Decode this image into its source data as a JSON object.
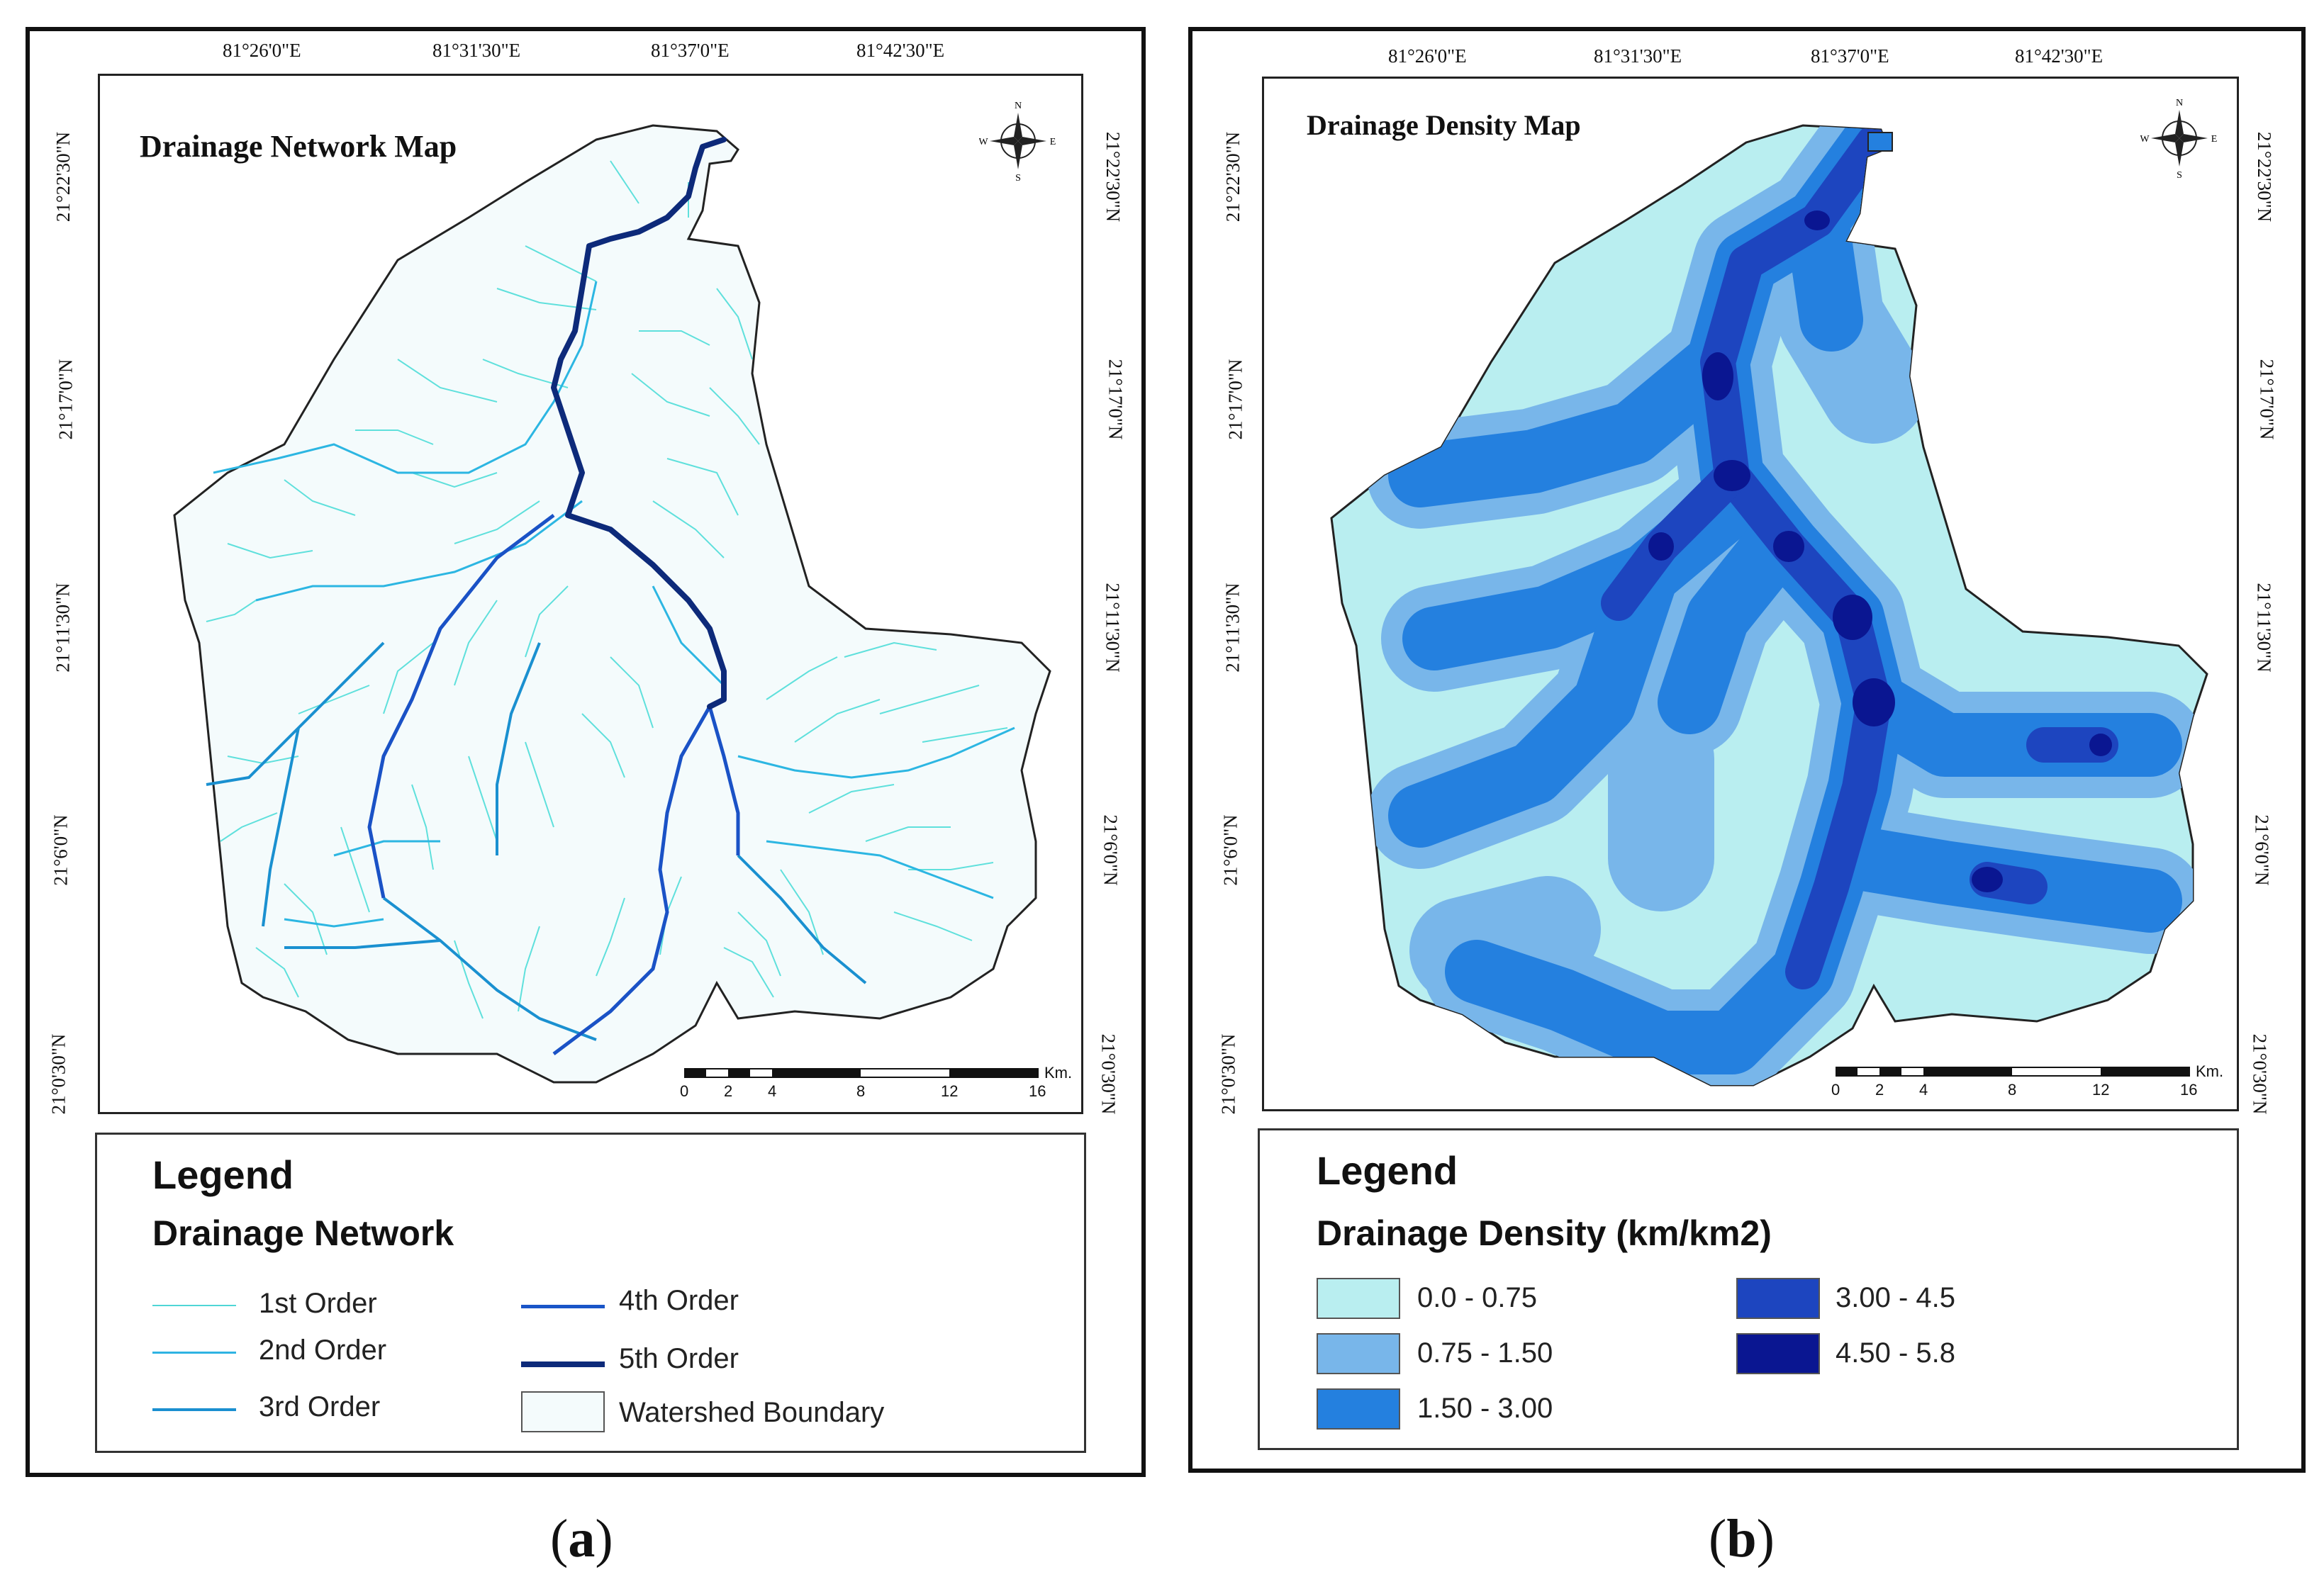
{
  "panels": [
    {
      "id": "a",
      "map_title": "Drainage Network Map",
      "caption_open": "(",
      "caption_letter": "a",
      "caption_close": ")",
      "top_coords": [
        "81°26'0\"E",
        "81°31'30\"E",
        "81°37'0\"E",
        "81°42'30\"E"
      ],
      "left_coords": [
        "21°22'30\"N",
        "21°17'0\"N",
        "21°11'30\"N",
        "21°6'0\"N",
        "21°0'30\"N"
      ],
      "right_coords": [
        "21°22'30\"N",
        "21°17'0\"N",
        "21°11'30\"N",
        "21°6'0\"N",
        "21°0'30\"N"
      ],
      "compass": {
        "n": "N",
        "e": "E",
        "s": "S",
        "w": "W"
      },
      "scale": {
        "unit": "Km.",
        "labels": [
          "0",
          "2",
          "4",
          "8",
          "12",
          "16"
        ]
      },
      "legend": {
        "title": "Legend",
        "subtitle": "Drainage Network",
        "items": [
          {
            "label": "1st Order",
            "color": "#4fd6d6"
          },
          {
            "label": "2nd Order",
            "color": "#2fb3e3"
          },
          {
            "label": "3rd Order",
            "color": "#1a8fd0"
          },
          {
            "label": "4th Order",
            "color": "#1a55c8"
          },
          {
            "label": "5th Order",
            "color": "#0d2a7a"
          },
          {
            "label": "Watershed Boundary",
            "color": "#f4fbfc"
          }
        ]
      }
    },
    {
      "id": "b",
      "map_title": "Drainage Density Map",
      "caption_open": "(",
      "caption_letter": "b",
      "caption_close": ")",
      "top_coords": [
        "81°26'0\"E",
        "81°31'30\"E",
        "81°37'0\"E",
        "81°42'30\"E"
      ],
      "left_coords": [
        "21°22'30\"N",
        "21°17'0\"N",
        "21°11'30\"N",
        "21°6'0\"N",
        "21°0'30\"N"
      ],
      "right_coords": [
        "21°22'30\"N",
        "21°17'0\"N",
        "21°11'30\"N",
        "21°6'0\"N",
        "21°0'30\"N"
      ],
      "compass": {
        "n": "N",
        "e": "E",
        "s": "S",
        "w": "W"
      },
      "scale": {
        "unit": "Km.",
        "labels": [
          "0",
          "2",
          "4",
          "8",
          "12",
          "16"
        ]
      },
      "legend": {
        "title": "Legend",
        "subtitle": "Drainage Density (km/km2)",
        "items": [
          {
            "label": "0.0  -  0.75",
            "color": "#b9eef0"
          },
          {
            "label": "0.75  -  1.50",
            "color": "#78b6ea"
          },
          {
            "label": "1.50  - 3.00",
            "color": "#2480df"
          },
          {
            "label": "3.00  -  4.5",
            "color": "#1d45bf"
          },
          {
            "label": "4.50  -  5.8",
            "color": "#0a1691"
          }
        ]
      }
    }
  ]
}
